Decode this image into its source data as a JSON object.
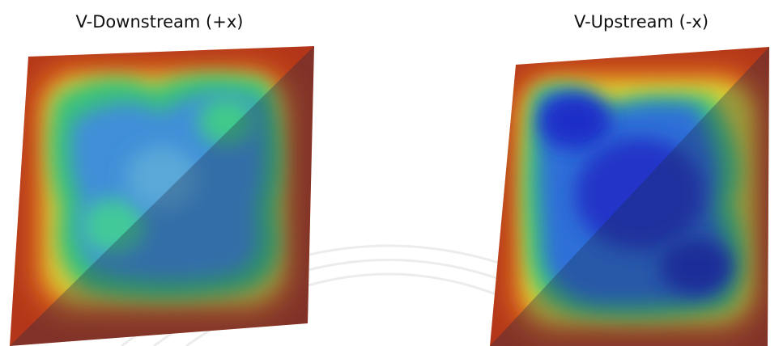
{
  "panels": [
    {
      "title": "V-Downstream (+x)"
    },
    {
      "title": "V-Upstream (-x)"
    }
  ]
}
